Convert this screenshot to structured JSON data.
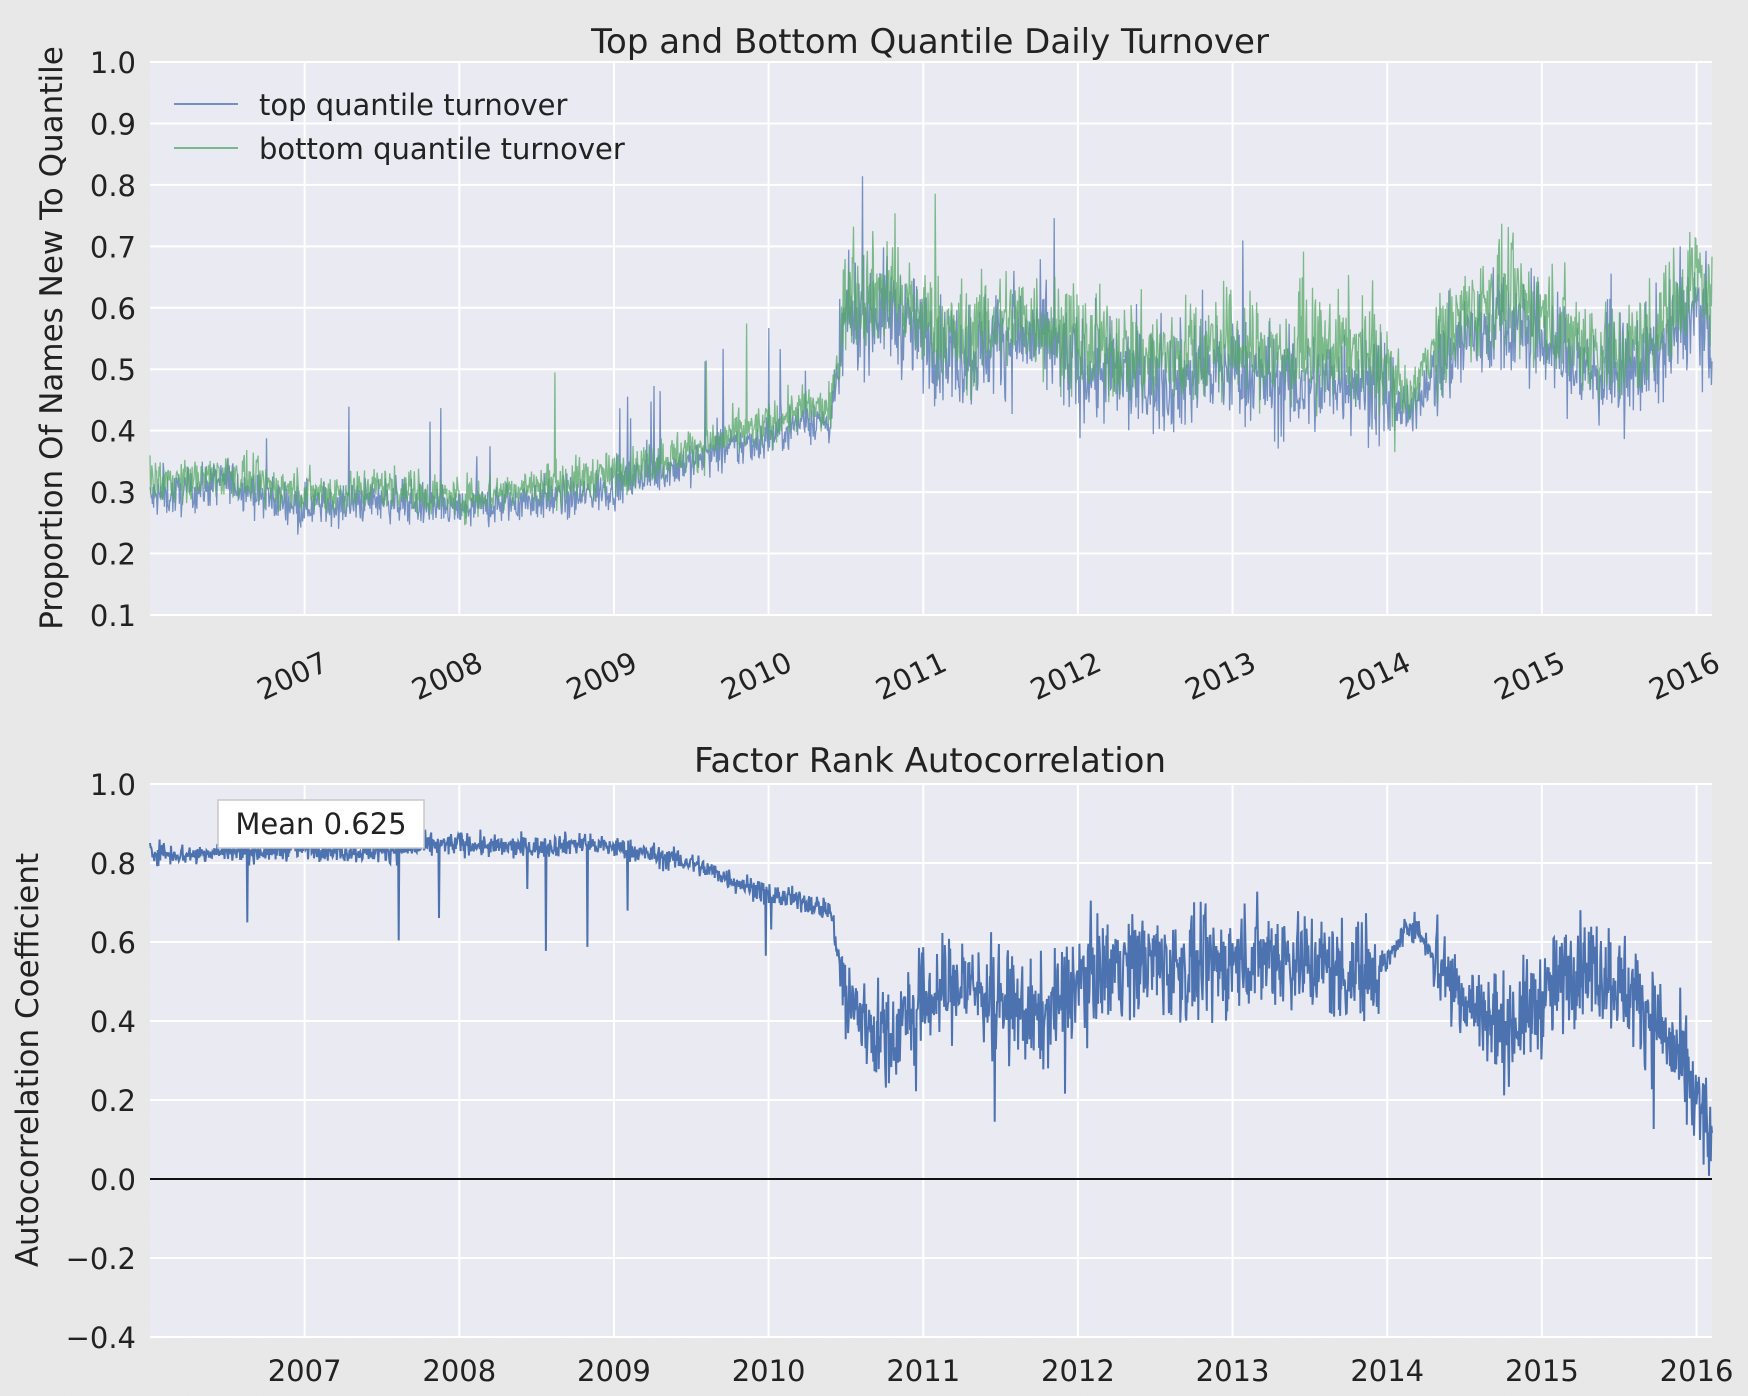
{
  "chart_data": [
    {
      "type": "line",
      "title": "Top and Bottom Quantile Daily Turnover",
      "ylabel": "Proportion Of Names New To Quantile",
      "xlabel": "",
      "ylim": [
        0.1,
        1.0
      ],
      "xlim": [
        2006.0,
        2016.1
      ],
      "x_ticks": [
        "2007",
        "2008",
        "2009",
        "2010",
        "2011",
        "2012",
        "2013",
        "2014",
        "2015",
        "2016"
      ],
      "y_ticks": [
        "0.1",
        "0.2",
        "0.3",
        "0.4",
        "0.5",
        "0.6",
        "0.7",
        "0.8",
        "0.9",
        "1.0"
      ],
      "grid": true,
      "legend_position": "top-left",
      "x": [
        2006.0,
        2006.25,
        2006.5,
        2006.75,
        2007.0,
        2007.25,
        2007.5,
        2007.75,
        2008.0,
        2008.25,
        2008.5,
        2008.75,
        2009.0,
        2009.25,
        2009.5,
        2009.75,
        2010.0,
        2010.25,
        2010.4,
        2010.5,
        2010.75,
        2011.0,
        2011.25,
        2011.5,
        2011.75,
        2012.0,
        2012.25,
        2012.5,
        2012.75,
        2013.0,
        2013.25,
        2013.5,
        2013.75,
        2014.0,
        2014.15,
        2014.25,
        2014.5,
        2014.75,
        2015.0,
        2015.25,
        2015.5,
        2015.75,
        2016.0,
        2016.1
      ],
      "series": [
        {
          "name": "top quantile turnover",
          "color": "#4c72b0",
          "values": [
            0.29,
            0.3,
            0.32,
            0.29,
            0.28,
            0.28,
            0.29,
            0.28,
            0.27,
            0.28,
            0.29,
            0.29,
            0.31,
            0.33,
            0.35,
            0.37,
            0.39,
            0.42,
            0.41,
            0.58,
            0.6,
            0.55,
            0.52,
            0.55,
            0.55,
            0.5,
            0.49,
            0.48,
            0.49,
            0.5,
            0.48,
            0.47,
            0.49,
            0.46,
            0.42,
            0.48,
            0.55,
            0.58,
            0.55,
            0.5,
            0.48,
            0.53,
            0.6,
            0.55
          ]
        },
        {
          "name": "bottom quantile turnover",
          "color": "#55a868",
          "values": [
            0.32,
            0.32,
            0.33,
            0.31,
            0.3,
            0.3,
            0.31,
            0.3,
            0.29,
            0.3,
            0.31,
            0.32,
            0.33,
            0.35,
            0.37,
            0.39,
            0.41,
            0.44,
            0.43,
            0.62,
            0.63,
            0.58,
            0.55,
            0.58,
            0.58,
            0.54,
            0.53,
            0.52,
            0.53,
            0.54,
            0.52,
            0.52,
            0.54,
            0.5,
            0.45,
            0.52,
            0.59,
            0.62,
            0.59,
            0.55,
            0.52,
            0.57,
            0.66,
            0.6
          ]
        }
      ]
    },
    {
      "type": "line",
      "title": "Factor Rank Autocorrelation",
      "ylabel": "Autocorrelation Coefficient",
      "xlabel": "",
      "ylim": [
        -0.4,
        1.0
      ],
      "xlim": [
        2006.0,
        2016.1
      ],
      "x_ticks": [
        "2007",
        "2008",
        "2009",
        "2010",
        "2011",
        "2012",
        "2013",
        "2014",
        "2015",
        "2016"
      ],
      "y_ticks": [
        "−0.4",
        "−0.2",
        "0.0",
        "0.2",
        "0.4",
        "0.6",
        "0.8",
        "1.0"
      ],
      "grid": true,
      "hline": 0.0,
      "annotation": "Mean 0.625",
      "x": [
        2006.0,
        2006.25,
        2006.5,
        2006.75,
        2007.0,
        2007.25,
        2007.5,
        2007.75,
        2008.0,
        2008.25,
        2008.5,
        2008.75,
        2009.0,
        2009.25,
        2009.5,
        2009.75,
        2010.0,
        2010.25,
        2010.4,
        2010.5,
        2010.75,
        2011.0,
        2011.25,
        2011.5,
        2011.75,
        2012.0,
        2012.25,
        2012.5,
        2012.75,
        2013.0,
        2013.25,
        2013.5,
        2013.75,
        2014.0,
        2014.15,
        2014.25,
        2014.5,
        2014.75,
        2015.0,
        2015.25,
        2015.5,
        2015.75,
        2016.0,
        2016.1
      ],
      "series": [
        {
          "color": "#4c72b0",
          "values": [
            0.83,
            0.82,
            0.83,
            0.83,
            0.84,
            0.83,
            0.83,
            0.84,
            0.85,
            0.84,
            0.84,
            0.85,
            0.84,
            0.82,
            0.8,
            0.76,
            0.72,
            0.7,
            0.68,
            0.45,
            0.35,
            0.45,
            0.5,
            0.45,
            0.4,
            0.5,
            0.55,
            0.55,
            0.52,
            0.55,
            0.57,
            0.55,
            0.52,
            0.55,
            0.65,
            0.6,
            0.45,
            0.38,
            0.45,
            0.55,
            0.5,
            0.4,
            0.2,
            0.1
          ]
        }
      ]
    }
  ]
}
